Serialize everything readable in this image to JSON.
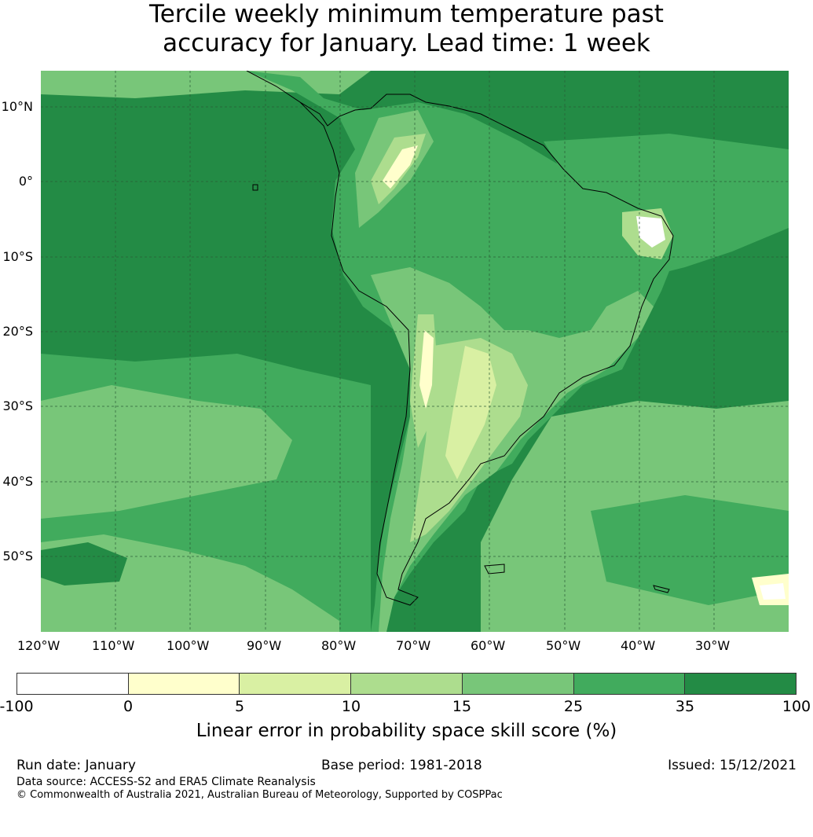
{
  "title": {
    "line1": "Tercile weekly minimum temperature past",
    "line2": "accuracy for January. Lead time: 1 week"
  },
  "map": {
    "lon_labels": [
      "120°W",
      "110°W",
      "100°W",
      "90°W",
      "80°W",
      "70°W",
      "60°W",
      "50°W",
      "40°W",
      "30°W"
    ],
    "lat_labels": [
      "10°N",
      "0°",
      "10°S",
      "20°S",
      "30°S",
      "40°S",
      "50°S"
    ],
    "colors": {
      "c0": "#ffffff",
      "c1": "#ffffcc",
      "c2": "#d9f0a3",
      "c3": "#addd8e",
      "c4": "#78c679",
      "c5": "#41ab5d",
      "c6": "#238b45",
      "coast": "#000000",
      "grid": "#2a5a35"
    }
  },
  "colorbar": {
    "ticks": [
      "-100",
      "0",
      "5",
      "10",
      "15",
      "25",
      "35",
      "100"
    ],
    "label": "Linear error in probability space skill score (%)"
  },
  "footer": {
    "run_date": "Run date: January",
    "base_period": "Base period: 1981-2018",
    "issued": "Issued: 15/12/2021",
    "data_source": "Data source: ACCESS-S2 and ERA5 Climate Reanalysis",
    "copyright": "© Commonwealth of Australia 2021, Australian Bureau of Meteorology, Supported by COSPPac"
  }
}
